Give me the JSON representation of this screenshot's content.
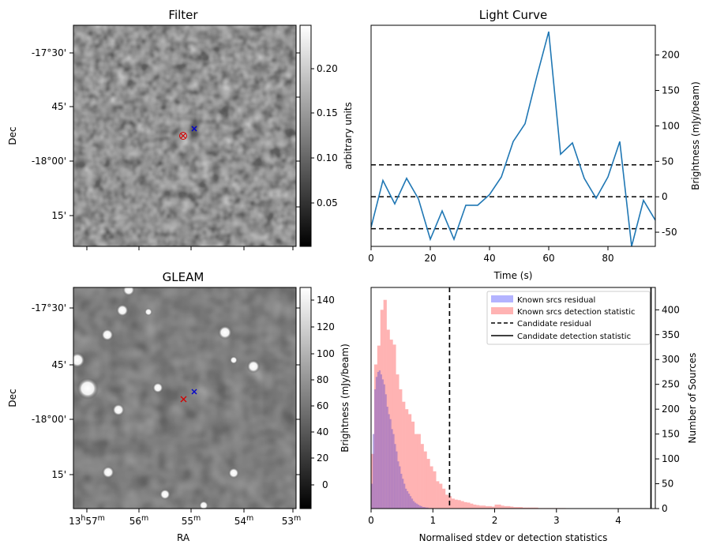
{
  "panels": {
    "filter": {
      "title": "Filter",
      "ylabel": "Dec",
      "yticks": [
        "-17°30'",
        "45'",
        "-18°00'",
        "15'"
      ],
      "colorbar": {
        "label": "arbitrary units",
        "ticks": [
          "0.20",
          "0.15",
          "0.10",
          "0.05"
        ],
        "range": [
          0.0,
          0.24
        ]
      },
      "markers": [
        {
          "symbol": "×",
          "color": "#d40000"
        },
        {
          "symbol": "×",
          "color": "#0000cc"
        }
      ]
    },
    "gleam": {
      "title": "GLEAM",
      "ylabel": "Dec",
      "xlabel": "RA",
      "yticks": [
        "-17°30'",
        "45'",
        "-18°00'",
        "15'"
      ],
      "xticks": [
        {
          "main": "13",
          "h": "h",
          "m": "57",
          "sup": "m"
        },
        {
          "main": "56",
          "sup": "m"
        },
        {
          "main": "55",
          "sup": "m"
        },
        {
          "main": "54",
          "sup": "m"
        },
        {
          "main": "53",
          "sup": "m"
        }
      ],
      "colorbar": {
        "label": "Brightness (mJy/beam)",
        "ticks": [
          "140",
          "120",
          "100",
          "80",
          "60",
          "40",
          "20",
          "0"
        ],
        "range": [
          -15,
          148
        ]
      },
      "markers": [
        {
          "symbol": "×",
          "color": "#d40000"
        },
        {
          "symbol": "×",
          "color": "#0000cc"
        }
      ]
    }
  },
  "chart_data": [
    {
      "type": "line",
      "title": "Light Curve",
      "xlabel": "Time (s)",
      "ylabel": "Brightness (mJy/beam)",
      "xlim": [
        0,
        96
      ],
      "ylim": [
        -70,
        242
      ],
      "xticks": [
        0,
        20,
        40,
        60,
        80
      ],
      "yticks": [
        -50,
        0,
        50,
        100,
        150,
        200
      ],
      "grid": false,
      "x": [
        0,
        4,
        8,
        12,
        16,
        20,
        24,
        28,
        32,
        36,
        40,
        44,
        48,
        52,
        56,
        60,
        64,
        68,
        72,
        76,
        80,
        84,
        88,
        92,
        96
      ],
      "series": [
        {
          "values": [
            -43,
            23,
            -10,
            26,
            -3,
            -60,
            -20,
            -60,
            -12,
            -12,
            3,
            28,
            78,
            103,
            170,
            233,
            60,
            76,
            26,
            -2,
            28,
            78,
            -70,
            -5,
            -33
          ],
          "color": "#1f77b4"
        }
      ],
      "hlines": [
        {
          "y": 45,
          "style": "dashed",
          "color": "#000000"
        },
        {
          "y": 0,
          "style": "dashed",
          "color": "#000000"
        },
        {
          "y": -45,
          "style": "dashed",
          "color": "#000000"
        }
      ]
    },
    {
      "type": "histogram",
      "xlabel": "Normalised stdev or detection statistics",
      "ylabel": "Number of Sources",
      "xlim": [
        0,
        4.6
      ],
      "ylim": [
        0,
        445
      ],
      "xticks": [
        0,
        1,
        2,
        3,
        4
      ],
      "yticks": [
        0,
        50,
        100,
        150,
        200,
        250,
        300,
        350,
        400
      ],
      "legend_position": "top-right",
      "legend": [
        {
          "label": "Known srcs residual",
          "kind": "patch",
          "color": "#b3b3ff"
        },
        {
          "label": "Known srcs detection statistic",
          "kind": "patch",
          "color": "#ffb3b3"
        },
        {
          "label": "Candidate residual",
          "kind": "dashed-line",
          "color": "#000000"
        },
        {
          "label": "Candidate detection statistic",
          "kind": "solid-line",
          "color": "#000000"
        }
      ],
      "series": [
        {
          "name": "Known srcs residual",
          "color": "#b3b3ff",
          "bin_width": 0.025,
          "bin_start": 0.0,
          "values": [
            50,
            150,
            240,
            265,
            275,
            278,
            270,
            260,
            250,
            230,
            205,
            190,
            180,
            160,
            150,
            130,
            115,
            95,
            85,
            70,
            60,
            50,
            40,
            35,
            30,
            25,
            20,
            15,
            12,
            10,
            8,
            6,
            5,
            3,
            3,
            2,
            2,
            1,
            1,
            1
          ]
        },
        {
          "name": "Known srcs detection statistic",
          "color": "#ffb3b3",
          "bin_width": 0.05,
          "bin_start": 0.0,
          "values": [
            110,
            290,
            328,
            400,
            420,
            360,
            340,
            330,
            270,
            240,
            215,
            200,
            190,
            175,
            150,
            150,
            130,
            115,
            100,
            85,
            75,
            55,
            50,
            40,
            28,
            25,
            20,
            18,
            17,
            15,
            13,
            12,
            10,
            8,
            7,
            6,
            6,
            5,
            5,
            4,
            8,
            8,
            6,
            5,
            5,
            4,
            3,
            3,
            3,
            2,
            2,
            2,
            2,
            2,
            1,
            1,
            1,
            1,
            1,
            1,
            1,
            1,
            1,
            0,
            0,
            0,
            0,
            0,
            0,
            0,
            0,
            0,
            0,
            0,
            0,
            0,
            0,
            0,
            0,
            0
          ]
        }
      ],
      "vlines": [
        {
          "name": "Candidate residual",
          "x": 1.27,
          "style": "dashed"
        },
        {
          "name": "Candidate detection statistic",
          "x": 4.53,
          "style": "solid"
        }
      ]
    }
  ]
}
